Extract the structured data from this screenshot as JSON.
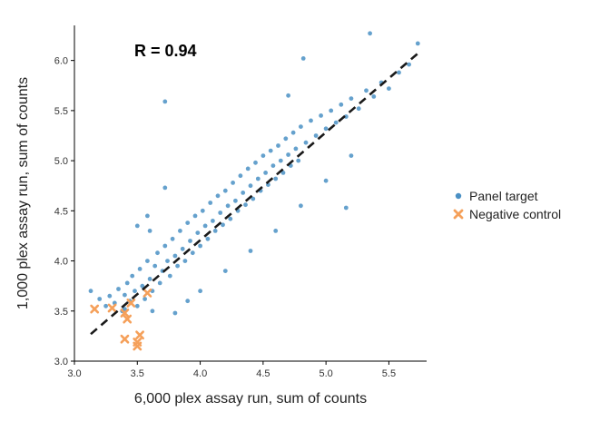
{
  "chart_data": {
    "type": "scatter",
    "xlabel": "6,000 plex assay run, sum of counts",
    "ylabel": "1,000 plex assay run, sum of counts",
    "xlim": [
      3.0,
      5.8
    ],
    "ylim": [
      3.0,
      6.35
    ],
    "x_ticks": [
      "3.0",
      "3.5",
      "4.0",
      "4.5",
      "5.0",
      "5.5"
    ],
    "y_ticks": [
      "3.0",
      "3.5",
      "4.0",
      "4.5",
      "5.0",
      "5.5",
      "6.0"
    ],
    "annotation": "R = 0.94",
    "grid": false,
    "legend_position": "right",
    "fit_line": {
      "style": "dashed",
      "color": "#1a1a1a",
      "from": [
        3.13,
        3.27
      ],
      "to": [
        5.73,
        6.07
      ]
    },
    "series": [
      {
        "name": "Panel target",
        "marker": "circle",
        "color": "#4a90c4",
        "points": [
          [
            3.13,
            3.7
          ],
          [
            3.2,
            3.62
          ],
          [
            3.25,
            3.55
          ],
          [
            3.28,
            3.65
          ],
          [
            3.32,
            3.58
          ],
          [
            3.35,
            3.72
          ],
          [
            3.38,
            3.5
          ],
          [
            3.4,
            3.66
          ],
          [
            3.42,
            3.78
          ],
          [
            3.44,
            3.6
          ],
          [
            3.46,
            3.85
          ],
          [
            3.48,
            3.7
          ],
          [
            3.5,
            3.55
          ],
          [
            3.52,
            3.92
          ],
          [
            3.54,
            3.75
          ],
          [
            3.56,
            3.62
          ],
          [
            3.58,
            4.0
          ],
          [
            3.6,
            3.82
          ],
          [
            3.62,
            3.7
          ],
          [
            3.64,
            3.95
          ],
          [
            3.66,
            4.08
          ],
          [
            3.68,
            3.78
          ],
          [
            3.7,
            3.9
          ],
          [
            3.72,
            4.15
          ],
          [
            3.74,
            4.0
          ],
          [
            3.76,
            3.85
          ],
          [
            3.78,
            4.22
          ],
          [
            3.8,
            4.05
          ],
          [
            3.82,
            3.95
          ],
          [
            3.84,
            4.3
          ],
          [
            3.86,
            4.12
          ],
          [
            3.88,
            4.0
          ],
          [
            3.9,
            4.38
          ],
          [
            3.92,
            4.2
          ],
          [
            3.94,
            4.08
          ],
          [
            3.96,
            4.45
          ],
          [
            3.98,
            4.28
          ],
          [
            4.0,
            4.15
          ],
          [
            4.02,
            4.5
          ],
          [
            4.04,
            4.35
          ],
          [
            4.06,
            4.22
          ],
          [
            4.08,
            4.58
          ],
          [
            4.1,
            4.4
          ],
          [
            4.12,
            4.3
          ],
          [
            4.14,
            4.65
          ],
          [
            4.16,
            4.48
          ],
          [
            4.18,
            4.36
          ],
          [
            4.2,
            4.7
          ],
          [
            4.22,
            4.55
          ],
          [
            4.24,
            4.42
          ],
          [
            4.26,
            4.78
          ],
          [
            4.28,
            4.6
          ],
          [
            4.3,
            4.5
          ],
          [
            4.32,
            4.85
          ],
          [
            4.34,
            4.68
          ],
          [
            4.36,
            4.56
          ],
          [
            4.38,
            4.92
          ],
          [
            4.4,
            4.75
          ],
          [
            4.42,
            4.62
          ],
          [
            4.44,
            4.98
          ],
          [
            4.46,
            4.82
          ],
          [
            4.48,
            4.7
          ],
          [
            4.5,
            5.05
          ],
          [
            4.52,
            4.88
          ],
          [
            4.54,
            4.76
          ],
          [
            4.56,
            5.1
          ],
          [
            4.58,
            4.95
          ],
          [
            4.6,
            4.82
          ],
          [
            4.62,
            5.15
          ],
          [
            4.64,
            5.0
          ],
          [
            4.66,
            4.88
          ],
          [
            4.68,
            5.22
          ],
          [
            4.7,
            5.06
          ],
          [
            4.72,
            4.95
          ],
          [
            4.74,
            5.28
          ],
          [
            4.76,
            5.12
          ],
          [
            4.78,
            5.0
          ],
          [
            4.8,
            5.34
          ],
          [
            4.84,
            5.18
          ],
          [
            4.88,
            5.4
          ],
          [
            4.92,
            5.25
          ],
          [
            4.96,
            5.45
          ],
          [
            5.0,
            5.32
          ],
          [
            5.04,
            5.5
          ],
          [
            5.08,
            5.38
          ],
          [
            5.12,
            5.56
          ],
          [
            5.16,
            5.44
          ],
          [
            5.2,
            5.62
          ],
          [
            5.26,
            5.52
          ],
          [
            5.32,
            5.7
          ],
          [
            5.38,
            5.64
          ],
          [
            5.44,
            5.78
          ],
          [
            5.5,
            5.72
          ],
          [
            5.58,
            5.88
          ],
          [
            5.66,
            5.96
          ],
          [
            5.73,
            6.17
          ],
          [
            5.35,
            6.27
          ],
          [
            4.82,
            6.02
          ],
          [
            3.72,
            5.59
          ],
          [
            5.16,
            4.53
          ],
          [
            3.72,
            4.73
          ],
          [
            3.62,
            3.5
          ],
          [
            3.8,
            3.48
          ],
          [
            3.4,
            3.52
          ],
          [
            3.58,
            4.45
          ],
          [
            3.6,
            4.3
          ],
          [
            4.0,
            3.7
          ],
          [
            4.2,
            3.9
          ],
          [
            4.4,
            4.1
          ],
          [
            4.6,
            4.3
          ],
          [
            4.8,
            4.55
          ],
          [
            5.0,
            4.8
          ],
          [
            3.5,
            4.35
          ],
          [
            3.9,
            3.6
          ],
          [
            4.7,
            5.65
          ],
          [
            5.2,
            5.05
          ]
        ]
      },
      {
        "name": "Negative control",
        "marker": "x",
        "color": "#f5a05a",
        "points": [
          [
            3.16,
            3.52
          ],
          [
            3.3,
            3.53
          ],
          [
            3.4,
            3.48
          ],
          [
            3.42,
            3.42
          ],
          [
            3.4,
            3.22
          ],
          [
            3.5,
            3.19
          ],
          [
            3.52,
            3.26
          ],
          [
            3.5,
            3.15
          ],
          [
            3.58,
            3.68
          ],
          [
            3.45,
            3.58
          ]
        ]
      }
    ]
  }
}
